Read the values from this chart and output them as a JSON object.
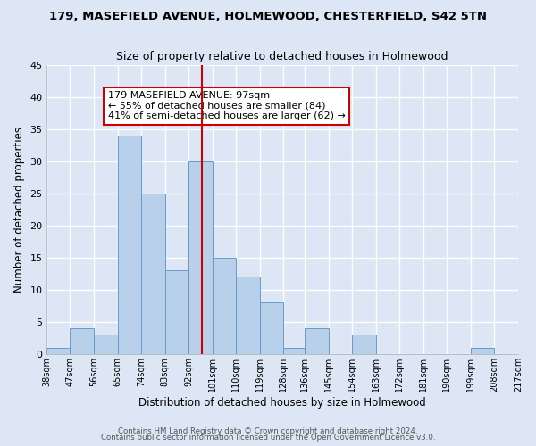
{
  "title1": "179, MASEFIELD AVENUE, HOLMEWOOD, CHESTERFIELD, S42 5TN",
  "title2": "Size of property relative to detached houses in Holmewood",
  "xlabel": "Distribution of detached houses by size in Holmewood",
  "ylabel": "Number of detached properties",
  "bins": [
    38,
    47,
    56,
    65,
    74,
    83,
    92,
    101,
    110,
    119,
    128,
    136,
    145,
    154,
    163,
    172,
    181,
    190,
    199,
    208,
    217
  ],
  "counts": [
    1,
    4,
    3,
    34,
    25,
    13,
    30,
    15,
    12,
    8,
    1,
    4,
    0,
    3,
    0,
    0,
    0,
    0,
    1,
    0
  ],
  "bar_color": "#b8d0ea",
  "bar_edge_color": "#6699cc",
  "background_color": "#dce6f5",
  "grid_color": "#ffffff",
  "vline_x": 97,
  "vline_color": "#cc0000",
  "annotation_text": "179 MASEFIELD AVENUE: 97sqm\n← 55% of detached houses are smaller (84)\n41% of semi-detached houses are larger (62) →",
  "annotation_box_color": "#ffffff",
  "annotation_box_edge": "#cc0000",
  "ylim": [
    0,
    45
  ],
  "yticks": [
    0,
    5,
    10,
    15,
    20,
    25,
    30,
    35,
    40,
    45
  ],
  "tick_labels": [
    "38sqm",
    "47sqm",
    "56sqm",
    "65sqm",
    "74sqm",
    "83sqm",
    "92sqm",
    "101sqm",
    "110sqm",
    "119sqm",
    "128sqm",
    "136sqm",
    "145sqm",
    "154sqm",
    "163sqm",
    "172sqm",
    "181sqm",
    "190sqm",
    "199sqm",
    "208sqm",
    "217sqm"
  ],
  "footer1": "Contains HM Land Registry data © Crown copyright and database right 2024.",
  "footer2": "Contains public sector information licensed under the Open Government Licence v3.0."
}
